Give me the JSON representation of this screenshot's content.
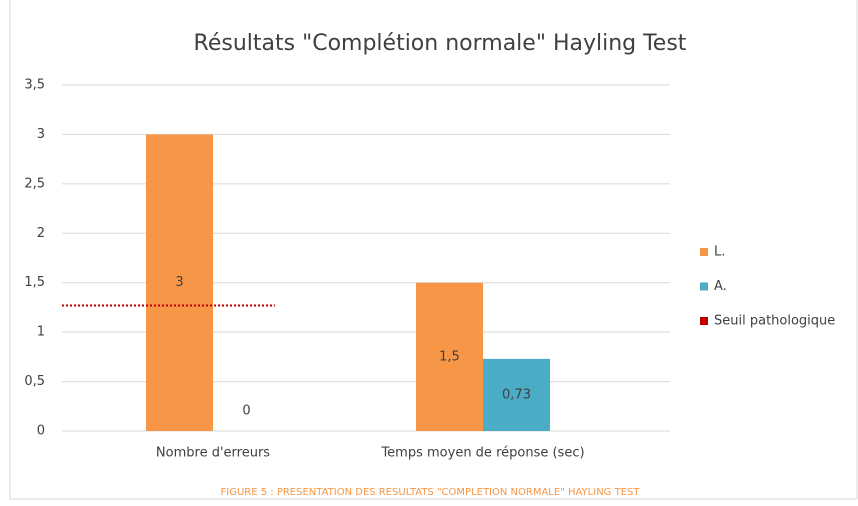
{
  "chart_data": {
    "type": "bar",
    "title": "Résultats \"Complétion normale\" Hayling Test",
    "caption": "FIGURE 5 : PRESENTATION DES RESULTATS \"COMPLETION NORMALE\" HAYLING TEST",
    "categories": [
      "Nombre d'erreurs",
      "Temps moyen de réponse (sec)"
    ],
    "series": [
      {
        "name": "L.",
        "color": "#f79646",
        "values": [
          3,
          1.5
        ],
        "value_labels": [
          "3",
          "1,5"
        ]
      },
      {
        "name": "A.",
        "color": "#4bacc6",
        "values": [
          0,
          0.73
        ],
        "value_labels": [
          "0",
          "0,73"
        ]
      },
      {
        "name": "Seuil pathologique",
        "color": "#c00000",
        "style": "dotted-line",
        "values": [
          1.27,
          null
        ]
      }
    ],
    "ylim": [
      0,
      3.5
    ],
    "yticks": [
      0,
      {
        "value": 0.5,
        "label": "0,5"
      },
      1,
      {
        "value": 1.5,
        "label": "1,5"
      },
      2,
      {
        "value": 2.5,
        "label": "2,5"
      },
      3,
      {
        "value": 3.5,
        "label": "3,5"
      }
    ],
    "grid": true,
    "legend": "right"
  }
}
